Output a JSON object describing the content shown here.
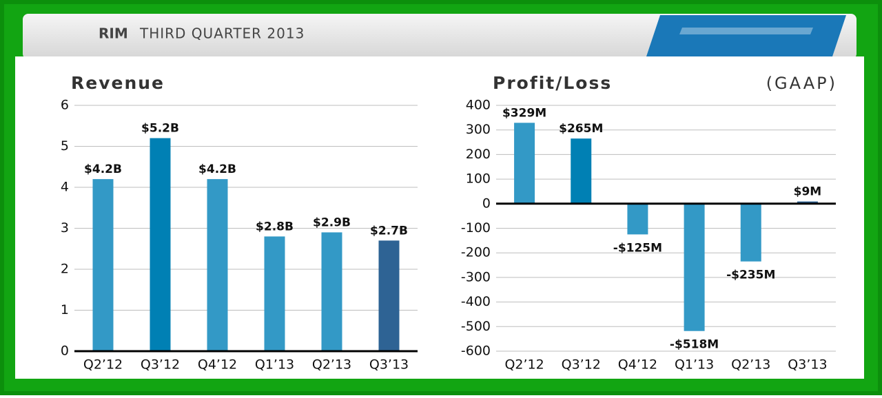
{
  "header": {
    "company": "RIM",
    "title": "THIRD QUARTER 2013"
  },
  "chart_data": [
    {
      "type": "bar",
      "title": "Revenue",
      "categories": [
        "Q2’12",
        "Q3’12",
        "Q4’12",
        "Q1’13",
        "Q2’13",
        "Q3’13"
      ],
      "values": [
        4.2,
        5.2,
        4.2,
        2.8,
        2.9,
        2.7
      ],
      "value_labels": [
        "$4.2B",
        "$5.2B",
        "$4.2B",
        "$2.8B",
        "$2.9B",
        "$2.7B"
      ],
      "colors": [
        "#3399c6",
        "#0080b4",
        "#3399c6",
        "#3399c6",
        "#3399c6",
        "#2e6394"
      ],
      "ylim": [
        0,
        6
      ],
      "yticks": [
        0,
        1,
        2,
        3,
        4,
        5,
        6
      ],
      "grid": true
    },
    {
      "type": "bar",
      "title": "Profit/Loss",
      "subtitle": "(GAAP)",
      "categories": [
        "Q2’12",
        "Q3’12",
        "Q4’12",
        "Q1’13",
        "Q2’13",
        "Q3’13"
      ],
      "values": [
        329,
        265,
        -125,
        -518,
        -235,
        9
      ],
      "value_labels": [
        "$329M",
        "$265M",
        "-$125M",
        "-$518M",
        "-$235M",
        "$9M"
      ],
      "colors": [
        "#3399c6",
        "#0080b4",
        "#3399c6",
        "#3399c6",
        "#3399c6",
        "#2e6394"
      ],
      "ylim": [
        -600,
        400
      ],
      "yticks": [
        400,
        300,
        200,
        100,
        0,
        -100,
        -200,
        -300,
        -400,
        -500,
        -600
      ],
      "grid": true
    }
  ]
}
